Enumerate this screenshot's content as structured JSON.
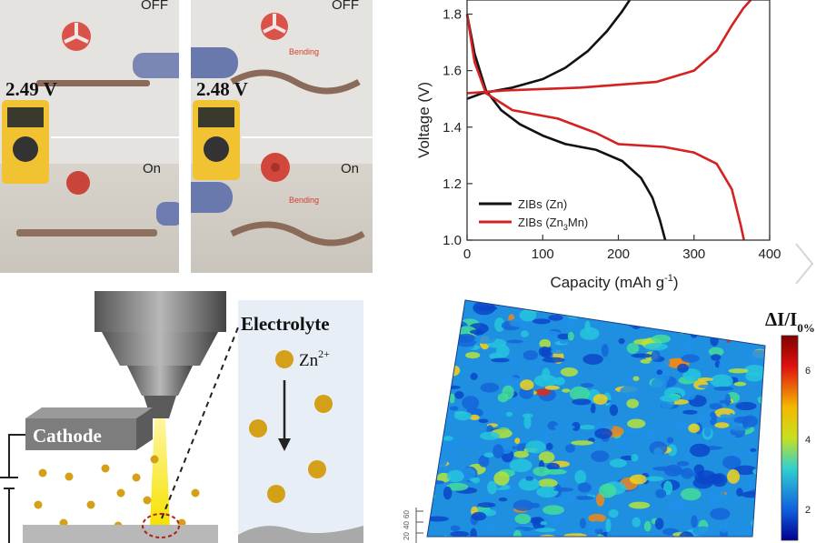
{
  "photos": {
    "left": {
      "off_label": "OFF",
      "on_label": "On",
      "voltage": "2.49 V"
    },
    "right": {
      "off_label": "OFF",
      "on_label": "On",
      "voltage": "2.48 V",
      "bending_label": "Bending"
    }
  },
  "chart_data": {
    "type": "line",
    "xlabel": "Capacity (mAh g⁻¹)",
    "ylabel": "Voltage (V)",
    "xlim": [
      0,
      400
    ],
    "ylim": [
      1.0,
      1.85
    ],
    "xticks": [
      "0",
      "100",
      "200",
      "300",
      "400"
    ],
    "yticks": [
      "1.0",
      "1.2",
      "1.4",
      "1.6",
      "1.8"
    ],
    "legend_position": "bottom-left",
    "series": [
      {
        "name": "ZIBs (Zn)",
        "color": "#111111",
        "role": "charge",
        "points": [
          [
            0,
            1.5
          ],
          [
            20,
            1.52
          ],
          [
            60,
            1.54
          ],
          [
            100,
            1.57
          ],
          [
            130,
            1.61
          ],
          [
            160,
            1.67
          ],
          [
            185,
            1.74
          ],
          [
            205,
            1.81
          ],
          [
            215,
            1.85
          ]
        ]
      },
      {
        "name": "ZIBs (Zn)",
        "color": "#111111",
        "role": "discharge",
        "points": [
          [
            0,
            1.8
          ],
          [
            10,
            1.66
          ],
          [
            25,
            1.53
          ],
          [
            45,
            1.46
          ],
          [
            70,
            1.41
          ],
          [
            100,
            1.37
          ],
          [
            130,
            1.34
          ],
          [
            170,
            1.32
          ],
          [
            205,
            1.28
          ],
          [
            230,
            1.22
          ],
          [
            245,
            1.15
          ],
          [
            255,
            1.07
          ],
          [
            262,
            1.0
          ]
        ]
      },
      {
        "name": "ZIBs (Zn3Mn)",
        "color": "#d42222",
        "role": "charge",
        "points": [
          [
            0,
            1.52
          ],
          [
            50,
            1.53
          ],
          [
            150,
            1.54
          ],
          [
            250,
            1.56
          ],
          [
            300,
            1.6
          ],
          [
            330,
            1.67
          ],
          [
            350,
            1.76
          ],
          [
            365,
            1.82
          ],
          [
            375,
            1.85
          ]
        ]
      },
      {
        "name": "ZIBs (Zn3Mn)",
        "color": "#d42222",
        "role": "discharge",
        "points": [
          [
            0,
            1.8
          ],
          [
            10,
            1.63
          ],
          [
            25,
            1.52
          ],
          [
            60,
            1.46
          ],
          [
            120,
            1.43
          ],
          [
            170,
            1.38
          ],
          [
            200,
            1.34
          ],
          [
            260,
            1.33
          ],
          [
            300,
            1.31
          ],
          [
            330,
            1.27
          ],
          [
            350,
            1.18
          ],
          [
            362,
            1.05
          ],
          [
            366,
            1.0
          ]
        ]
      }
    ]
  },
  "legend": {
    "zn": "ZIBs (Zn)",
    "zn3mn_prefix": "ZIBs (Zn",
    "zn3mn_sub": "3",
    "zn3mn_suffix": "Mn)"
  },
  "schematic": {
    "cathode_label": "Cathode",
    "electrolyte_label": "Electrolyte",
    "ion_label": "Zn",
    "ion_charge": "2+"
  },
  "surface_map": {
    "colorbar_title": "ΔI/I",
    "colorbar_sub": "0%",
    "colorbar_ticks": [
      "6",
      "4",
      "2"
    ],
    "axis_ticks": [
      "60",
      "40",
      "20"
    ]
  },
  "colors": {
    "zn_line": "#111111",
    "zn3mn_line": "#d42222",
    "ion": "#d4a017",
    "beam": "#f5e600",
    "cathode": "#777777"
  }
}
